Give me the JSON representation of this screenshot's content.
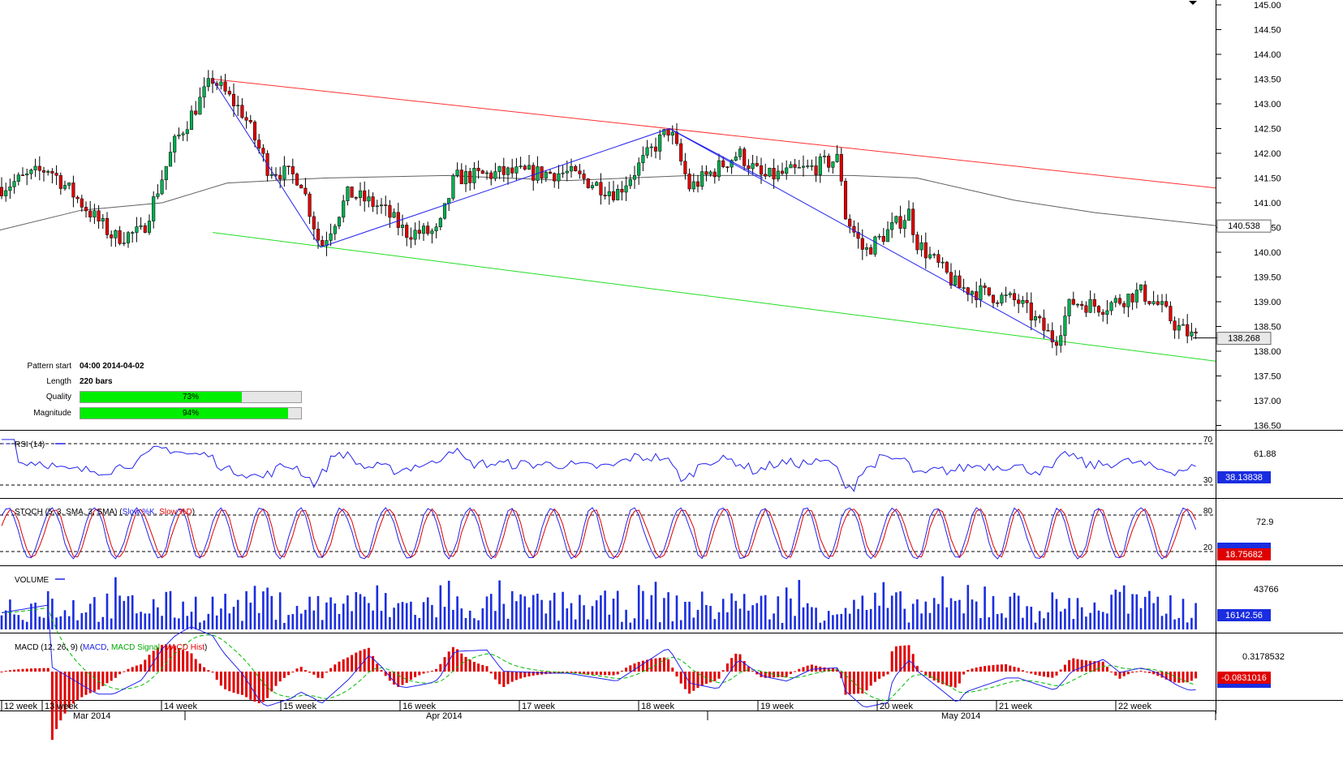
{
  "price_axis": {
    "ticks": [
      "145.00",
      "144.50",
      "144.00",
      "143.50",
      "143.00",
      "142.50",
      "142.00",
      "141.50",
      "141.00",
      "140.50",
      "140.00",
      "139.50",
      "139.00",
      "138.50",
      "138.00",
      "137.50",
      "137.00",
      "136.50"
    ],
    "ma_label": "140.538",
    "last_label": "138.268"
  },
  "pattern_info": {
    "start_label": "Pattern start",
    "start_value": "04:00 2014-04-02",
    "length_label": "Length",
    "length_value": "220 bars",
    "quality_label": "Quality",
    "quality_value": "73%",
    "quality_pct": 73,
    "magnitude_label": "Magnitude",
    "magnitude_value": "94%",
    "magnitude_pct": 94
  },
  "rsi": {
    "title": "RSI (14)",
    "level_high": "70",
    "level_low": "30",
    "tick": "61.88",
    "value": "38.13838"
  },
  "stoch": {
    "title_prefix": "STOCH (5, 3, SMA, 3, SMA) (",
    "k_name": "Slow %K",
    "d_name": "Slow %D",
    "title_suffix": ")",
    "level_high": "80",
    "level_low": "20",
    "tick": "72.9",
    "value": "18.75682"
  },
  "volume": {
    "title": "VOLUME",
    "tick": "43766",
    "value": "16142.56"
  },
  "macd": {
    "title_prefix": "MACD (12, 26, 9) (",
    "n1": "MACD",
    "n2": "MACD Signal",
    "n3": "MACD Hist",
    "title_suffix": ")",
    "tick": "0.3178532",
    "value": "-0.0831016"
  },
  "time_axis": {
    "weeks": [
      "12 week",
      "13 week",
      "14 week",
      "15 week",
      "16 week",
      "17 week",
      "18 week",
      "19 week",
      "20 week",
      "21 week",
      "22 week"
    ],
    "months": [
      "Mar 2014",
      "Apr 2014",
      "May 2014"
    ]
  },
  "colors": {
    "bull": "#00b050",
    "bear": "#e00000",
    "line_blue": "#2222ee",
    "upper_channel": "#ff3030",
    "lower_channel": "#22dd22",
    "ma": "#606060",
    "bar_green": "#00ee00"
  },
  "chart_data": {
    "type": "candlestick",
    "x_range": [
      "12 week",
      "22 week"
    ],
    "ylim": [
      136.5,
      145.0
    ],
    "swing_points": [
      {
        "time": "14 week",
        "price": 143.5
      },
      {
        "time": "15 week",
        "price": 140.1
      },
      {
        "time": "18 week",
        "price": 142.5
      },
      {
        "time": "21 week",
        "price": 138.2
      }
    ],
    "upper_channel": {
      "start": 143.5,
      "end": 141.3
    },
    "lower_channel": {
      "start": 140.4,
      "end": 137.8
    },
    "ma_end": 140.538,
    "last_price": 138.268,
    "indicators": {
      "rsi_last": 38.13838,
      "stoch_last": 18.75682,
      "volume_last": 16142.56,
      "macd_last": -0.0831016
    }
  }
}
